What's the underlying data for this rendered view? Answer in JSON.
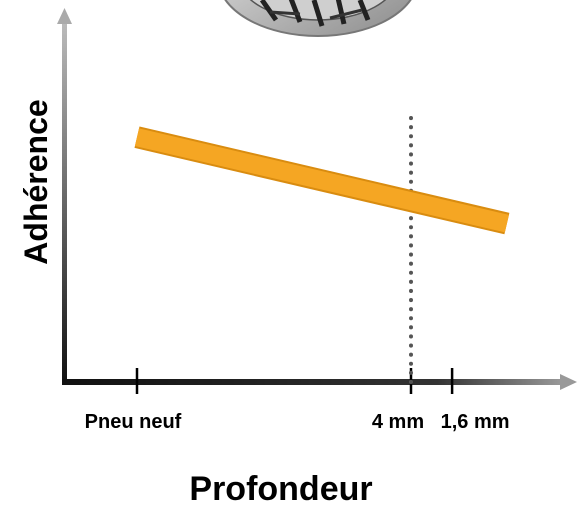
{
  "chart_data": {
    "type": "line",
    "xlabel": "Profondeur",
    "ylabel": "Adhérence",
    "x_ticks": [
      {
        "label": "Pneu neuf",
        "position": 0
      },
      {
        "label": "4 mm",
        "position": 2
      },
      {
        "label": "1,6 mm",
        "position": 2.3
      }
    ],
    "series": [
      {
        "color": "#f5a623",
        "x": [
          0,
          2.7
        ],
        "y": [
          0.85,
          0.55
        ]
      }
    ],
    "xlim": [
      -0.5,
      3.0
    ],
    "ylim": [
      0,
      1.25
    ],
    "reference_lines": [
      {
        "orientation": "vertical",
        "x": 2,
        "style": "dotted",
        "color": "#555555"
      }
    ],
    "grid": false,
    "legend": "none"
  },
  "colors": {
    "line": "#f5a623",
    "line_edge": "#d98c10",
    "axis": "#111111",
    "ref_line": "#555555"
  }
}
